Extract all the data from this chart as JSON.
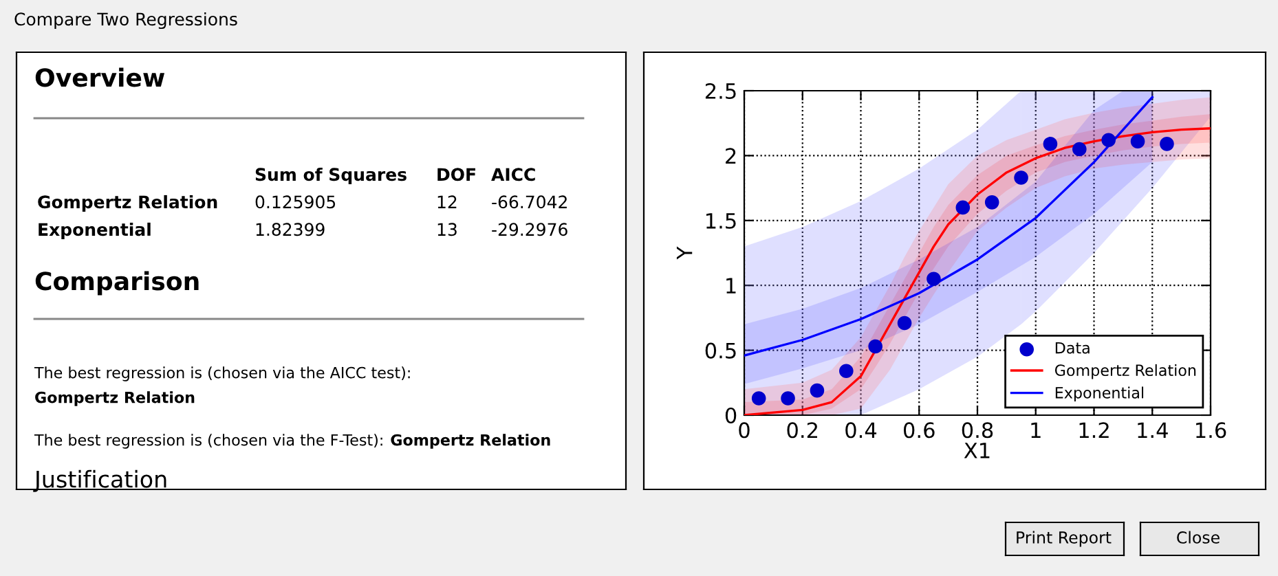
{
  "chart_data": [
    {
      "type": "other",
      "title": "Overview",
      "annotations": [
        "Sum of Squares",
        "DOF",
        "AICC",
        "Gompertz Relation",
        "0.125905",
        "12",
        "-66.7042",
        "Exponential",
        "1.82399",
        "13",
        "-29.2976",
        "Comparison",
        "The best regression is (chosen via the AICC test):",
        "Gompertz Relation",
        "The best regression is (chosen via the F-Test):",
        "Gompertz Relation",
        "Justification",
        "Compare Two Regressions",
        "Print Report",
        "Close"
      ]
    },
    {
      "type": "line",
      "xlabel": "X1",
      "ylabel": "Y",
      "xlim": [
        0,
        1.6
      ],
      "ylim": [
        0,
        2.5
      ],
      "xticks": [
        0,
        0.2,
        0.4,
        0.6,
        0.8,
        1,
        1.2,
        1.4,
        1.6
      ],
      "yticks": [
        0,
        0.5,
        1,
        1.5,
        2,
        2.5
      ],
      "grid": true,
      "legend": "bottom right",
      "series": [
        {
          "type": "area",
          "color": "#8080ff",
          "x": [
            0,
            0.2,
            0.4,
            0.6,
            0.8,
            0.95
          ],
          "values": [
            null,
            null,
            null,
            null,
            null,
            null
          ],
          "lower": [
            0,
            0,
            0.0,
            0.2,
            0.45,
            0.7
          ],
          "upper": [
            1.3,
            1.45,
            1.65,
            1.9,
            2.2,
            2.5
          ]
        },
        {
          "type": "area",
          "color": "#8080ff",
          "x": [
            0.95,
            1.0,
            1.2,
            1.4,
            1.6
          ],
          "values": [
            null,
            null,
            null,
            null,
            null
          ],
          "lower": [
            0.7,
            0.8,
            1.25,
            1.75,
            2.3
          ],
          "upper": [
            2.5,
            2.5,
            2.5,
            2.5,
            2.5
          ]
        },
        {
          "type": "area",
          "color": "#ff8080",
          "x": [
            0,
            0.2,
            0.3,
            0.4,
            0.45,
            0.5,
            0.55,
            0.6,
            0.65,
            0.7,
            0.8,
            0.9,
            1.0,
            1.1,
            1.2,
            1.3,
            1.4,
            1.5,
            1.6
          ],
          "values": [
            null,
            null,
            null,
            null,
            null,
            null,
            null,
            null,
            null,
            null,
            null,
            null,
            null,
            null,
            null,
            null,
            null,
            null,
            null
          ],
          "lower": [
            0,
            0,
            0,
            0.05,
            0.2,
            0.35,
            0.55,
            0.75,
            0.93,
            1.1,
            1.42,
            1.6,
            1.75,
            1.84,
            1.9,
            1.93,
            1.95,
            1.97,
            1.98
          ],
          "upper": [
            0.2,
            0.25,
            0.35,
            0.6,
            0.8,
            1.0,
            1.22,
            1.42,
            1.6,
            1.78,
            2.0,
            2.12,
            2.2,
            2.28,
            2.33,
            2.37,
            2.4,
            2.43,
            2.45
          ]
        },
        {
          "name": "Gompertz Relation",
          "type": "line",
          "color": "#ff0000",
          "x": [
            0,
            0.2,
            0.3,
            0.4,
            0.45,
            0.5,
            0.55,
            0.6,
            0.65,
            0.7,
            0.8,
            0.9,
            1.0,
            1.1,
            1.2,
            1.3,
            1.4,
            1.5,
            1.6
          ],
          "values": [
            0.0,
            0.04,
            0.1,
            0.3,
            0.5,
            0.7,
            0.9,
            1.1,
            1.3,
            1.47,
            1.7,
            1.87,
            1.98,
            2.06,
            2.11,
            2.15,
            2.18,
            2.2,
            2.21
          ],
          "lower": [
            0,
            0,
            0.05,
            0.2,
            0.37,
            0.55,
            0.75,
            0.95,
            1.13,
            1.3,
            1.55,
            1.73,
            1.87,
            1.95,
            2.0,
            2.04,
            2.07,
            2.09,
            2.1
          ],
          "upper": [
            0.1,
            0.12,
            0.2,
            0.45,
            0.65,
            0.85,
            1.05,
            1.25,
            1.45,
            1.62,
            1.85,
            2.0,
            2.08,
            2.15,
            2.2,
            2.24,
            2.27,
            2.3,
            2.32
          ]
        },
        {
          "name": "Exponential",
          "type": "line",
          "color": "#0000ff",
          "x": [
            0,
            0.2,
            0.4,
            0.6,
            0.8,
            1.0,
            1.2,
            1.3,
            1.4
          ],
          "values": [
            0.46,
            0.58,
            0.74,
            0.94,
            1.2,
            1.52,
            1.95,
            2.2,
            2.45
          ],
          "lower": [
            0.24,
            0.36,
            0.5,
            0.7,
            0.95,
            1.22,
            1.55,
            1.75,
            1.95
          ],
          "upper": [
            0.7,
            0.82,
            0.98,
            1.2,
            1.45,
            1.8,
            2.35,
            2.5,
            2.5
          ]
        },
        {
          "name": "Data",
          "type": "scatter",
          "marker": "circle",
          "color": "#0000cc",
          "x": [
            0.05,
            0.15,
            0.25,
            0.35,
            0.45,
            0.55,
            0.65,
            0.75,
            0.85,
            0.95,
            1.05,
            1.15,
            1.25,
            1.35,
            1.45
          ],
          "values": [
            0.13,
            0.13,
            0.19,
            0.34,
            0.53,
            0.71,
            1.05,
            1.6,
            1.64,
            1.83,
            2.09,
            2.05,
            2.12,
            2.11,
            2.09
          ]
        }
      ]
    }
  ]
}
